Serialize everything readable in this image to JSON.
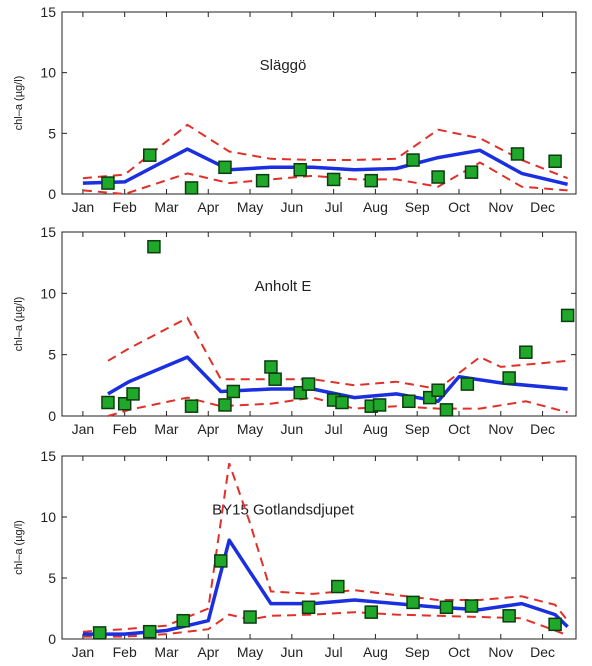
{
  "months": [
    "Jan",
    "Feb",
    "Mar",
    "Apr",
    "May",
    "Jun",
    "Jul",
    "Aug",
    "Sep",
    "Oct",
    "Nov",
    "Dec"
  ],
  "colors": {
    "mean": "#1a2fe0",
    "bounds": "#e0302a",
    "obs_fill": "#1fa82a",
    "obs_stroke": "#0c3d10"
  },
  "chart_data": [
    {
      "type": "line",
      "title": "Släggö",
      "ylabel": "chl–a (µg/l)",
      "ylim": [
        0,
        15
      ],
      "yticks": [
        0,
        5,
        10,
        15
      ],
      "xlim": [
        0.5,
        12.8
      ],
      "mean_line": {
        "x": [
          1,
          2,
          3.5,
          4.5,
          5.5,
          6.5,
          7.5,
          8.5,
          9.5,
          10.5,
          11.5,
          12.6
        ],
        "y": [
          0.9,
          1.0,
          3.7,
          2.0,
          2.2,
          2.2,
          2.0,
          2.1,
          3.0,
          3.6,
          1.7,
          0.8
        ]
      },
      "upper_bound": {
        "x": [
          1,
          2,
          3.5,
          4.5,
          5.5,
          6.5,
          7.5,
          8.5,
          9.5,
          10.5,
          11.5,
          12.6
        ],
        "y": [
          1.3,
          1.6,
          5.7,
          3.5,
          2.9,
          2.8,
          2.8,
          2.9,
          5.3,
          4.6,
          2.8,
          1.3
        ]
      },
      "lower_bound": {
        "x": [
          1,
          2,
          3.5,
          4.5,
          5.5,
          6.5,
          7.5,
          8.5,
          9.5,
          10.5,
          11.5,
          12.6
        ],
        "y": [
          0.3,
          0.0,
          1.7,
          0.9,
          1.2,
          1.5,
          1.2,
          1.2,
          0.6,
          2.6,
          0.6,
          0.3
        ]
      },
      "observations": {
        "x": [
          1.6,
          2.6,
          3.6,
          4.4,
          5.3,
          6.2,
          7.0,
          7.9,
          8.9,
          9.5,
          10.3,
          11.4,
          12.3
        ],
        "y": [
          0.9,
          3.2,
          0.5,
          2.2,
          1.1,
          2.0,
          1.2,
          1.1,
          2.8,
          1.4,
          1.8,
          3.3,
          2.7
        ]
      }
    },
    {
      "type": "line",
      "title": "Anholt E",
      "ylabel": "chl–a (µg/l)",
      "ylim": [
        0,
        15
      ],
      "yticks": [
        0,
        5,
        10,
        15
      ],
      "xlim": [
        0.5,
        12.8
      ],
      "mean_line": {
        "x": [
          1.6,
          2.1,
          3.5,
          4.3,
          5.5,
          6.5,
          7.5,
          8.5,
          9.5,
          10.0,
          11.0,
          12.6
        ],
        "y": [
          1.8,
          2.8,
          4.8,
          2.0,
          2.2,
          2.2,
          1.5,
          1.8,
          1.2,
          3.2,
          2.7,
          2.2
        ]
      },
      "upper_bound": {
        "x": [
          1.6,
          2.1,
          3.5,
          4.3,
          5.5,
          6.5,
          7.5,
          8.5,
          9.5,
          10.5,
          11.0,
          12.6
        ],
        "y": [
          4.5,
          5.5,
          8.0,
          3.0,
          3.0,
          3.0,
          2.5,
          2.8,
          2.2,
          4.8,
          4.0,
          4.5
        ]
      },
      "lower_bound": {
        "x": [
          1.6,
          2.1,
          3.5,
          4.3,
          5.5,
          6.5,
          7.5,
          8.5,
          9.5,
          10.5,
          11.6,
          12.6
        ],
        "y": [
          0.0,
          0.5,
          1.5,
          0.8,
          1.0,
          1.5,
          0.6,
          0.8,
          0.6,
          0.6,
          1.2,
          0.3
        ]
      },
      "observations": {
        "x": [
          1.6,
          2.0,
          2.2,
          2.7,
          3.6,
          4.4,
          4.6,
          5.5,
          5.6,
          6.2,
          6.4,
          7.0,
          7.2,
          7.9,
          8.1,
          8.8,
          9.3,
          9.5,
          9.7,
          10.2,
          11.2,
          11.6,
          12.6
        ],
        "y": [
          1.1,
          1.0,
          1.8,
          13.8,
          0.8,
          0.9,
          2.0,
          4.0,
          3.0,
          1.9,
          2.6,
          1.3,
          1.1,
          0.8,
          0.9,
          1.2,
          1.5,
          2.1,
          0.5,
          2.6,
          3.1,
          5.2,
          8.2
        ]
      }
    },
    {
      "type": "line",
      "title": "BY15 Gotlandsdjupet",
      "ylabel": "chl–a (µg/l)",
      "ylim": [
        0,
        15
      ],
      "yticks": [
        0,
        5,
        10,
        15
      ],
      "xlim": [
        0.5,
        12.8
      ],
      "mean_line": {
        "x": [
          1,
          2,
          3.0,
          4.0,
          4.5,
          5.0,
          5.5,
          6.5,
          7.5,
          8.5,
          9.5,
          10.5,
          11.5,
          12.3,
          12.6
        ],
        "y": [
          0.4,
          0.4,
          0.7,
          1.5,
          8.1,
          5.5,
          2.9,
          2.9,
          3.2,
          2.9,
          2.6,
          2.4,
          2.9,
          2.0,
          1.0
        ]
      },
      "upper_bound": {
        "x": [
          1,
          2,
          3.0,
          4.0,
          4.5,
          5.0,
          5.5,
          6.5,
          7.5,
          8.5,
          9.5,
          10.5,
          11.5,
          12.3,
          12.6
        ],
        "y": [
          0.6,
          0.8,
          1.1,
          2.5,
          14.4,
          9.5,
          3.9,
          3.7,
          4.0,
          3.6,
          3.2,
          3.2,
          3.5,
          2.8,
          1.5
        ]
      },
      "lower_bound": {
        "x": [
          1,
          2,
          3.0,
          4.0,
          4.5,
          5.0,
          5.5,
          6.5,
          7.5,
          8.5,
          9.5,
          10.5,
          11.5,
          12.3,
          12.6
        ],
        "y": [
          0.2,
          0.2,
          0.4,
          0.8,
          2.0,
          1.6,
          1.9,
          2.0,
          2.2,
          2.0,
          1.9,
          1.8,
          1.7,
          0.7,
          0.3
        ]
      },
      "observations": {
        "x": [
          1.4,
          2.6,
          3.4,
          4.3,
          5.0,
          6.4,
          7.1,
          7.9,
          8.9,
          9.7,
          10.3,
          11.2,
          12.3
        ],
        "y": [
          0.5,
          0.6,
          1.5,
          6.4,
          1.8,
          2.6,
          4.3,
          2.2,
          3.0,
          2.6,
          2.7,
          1.9,
          1.2
        ]
      }
    }
  ]
}
